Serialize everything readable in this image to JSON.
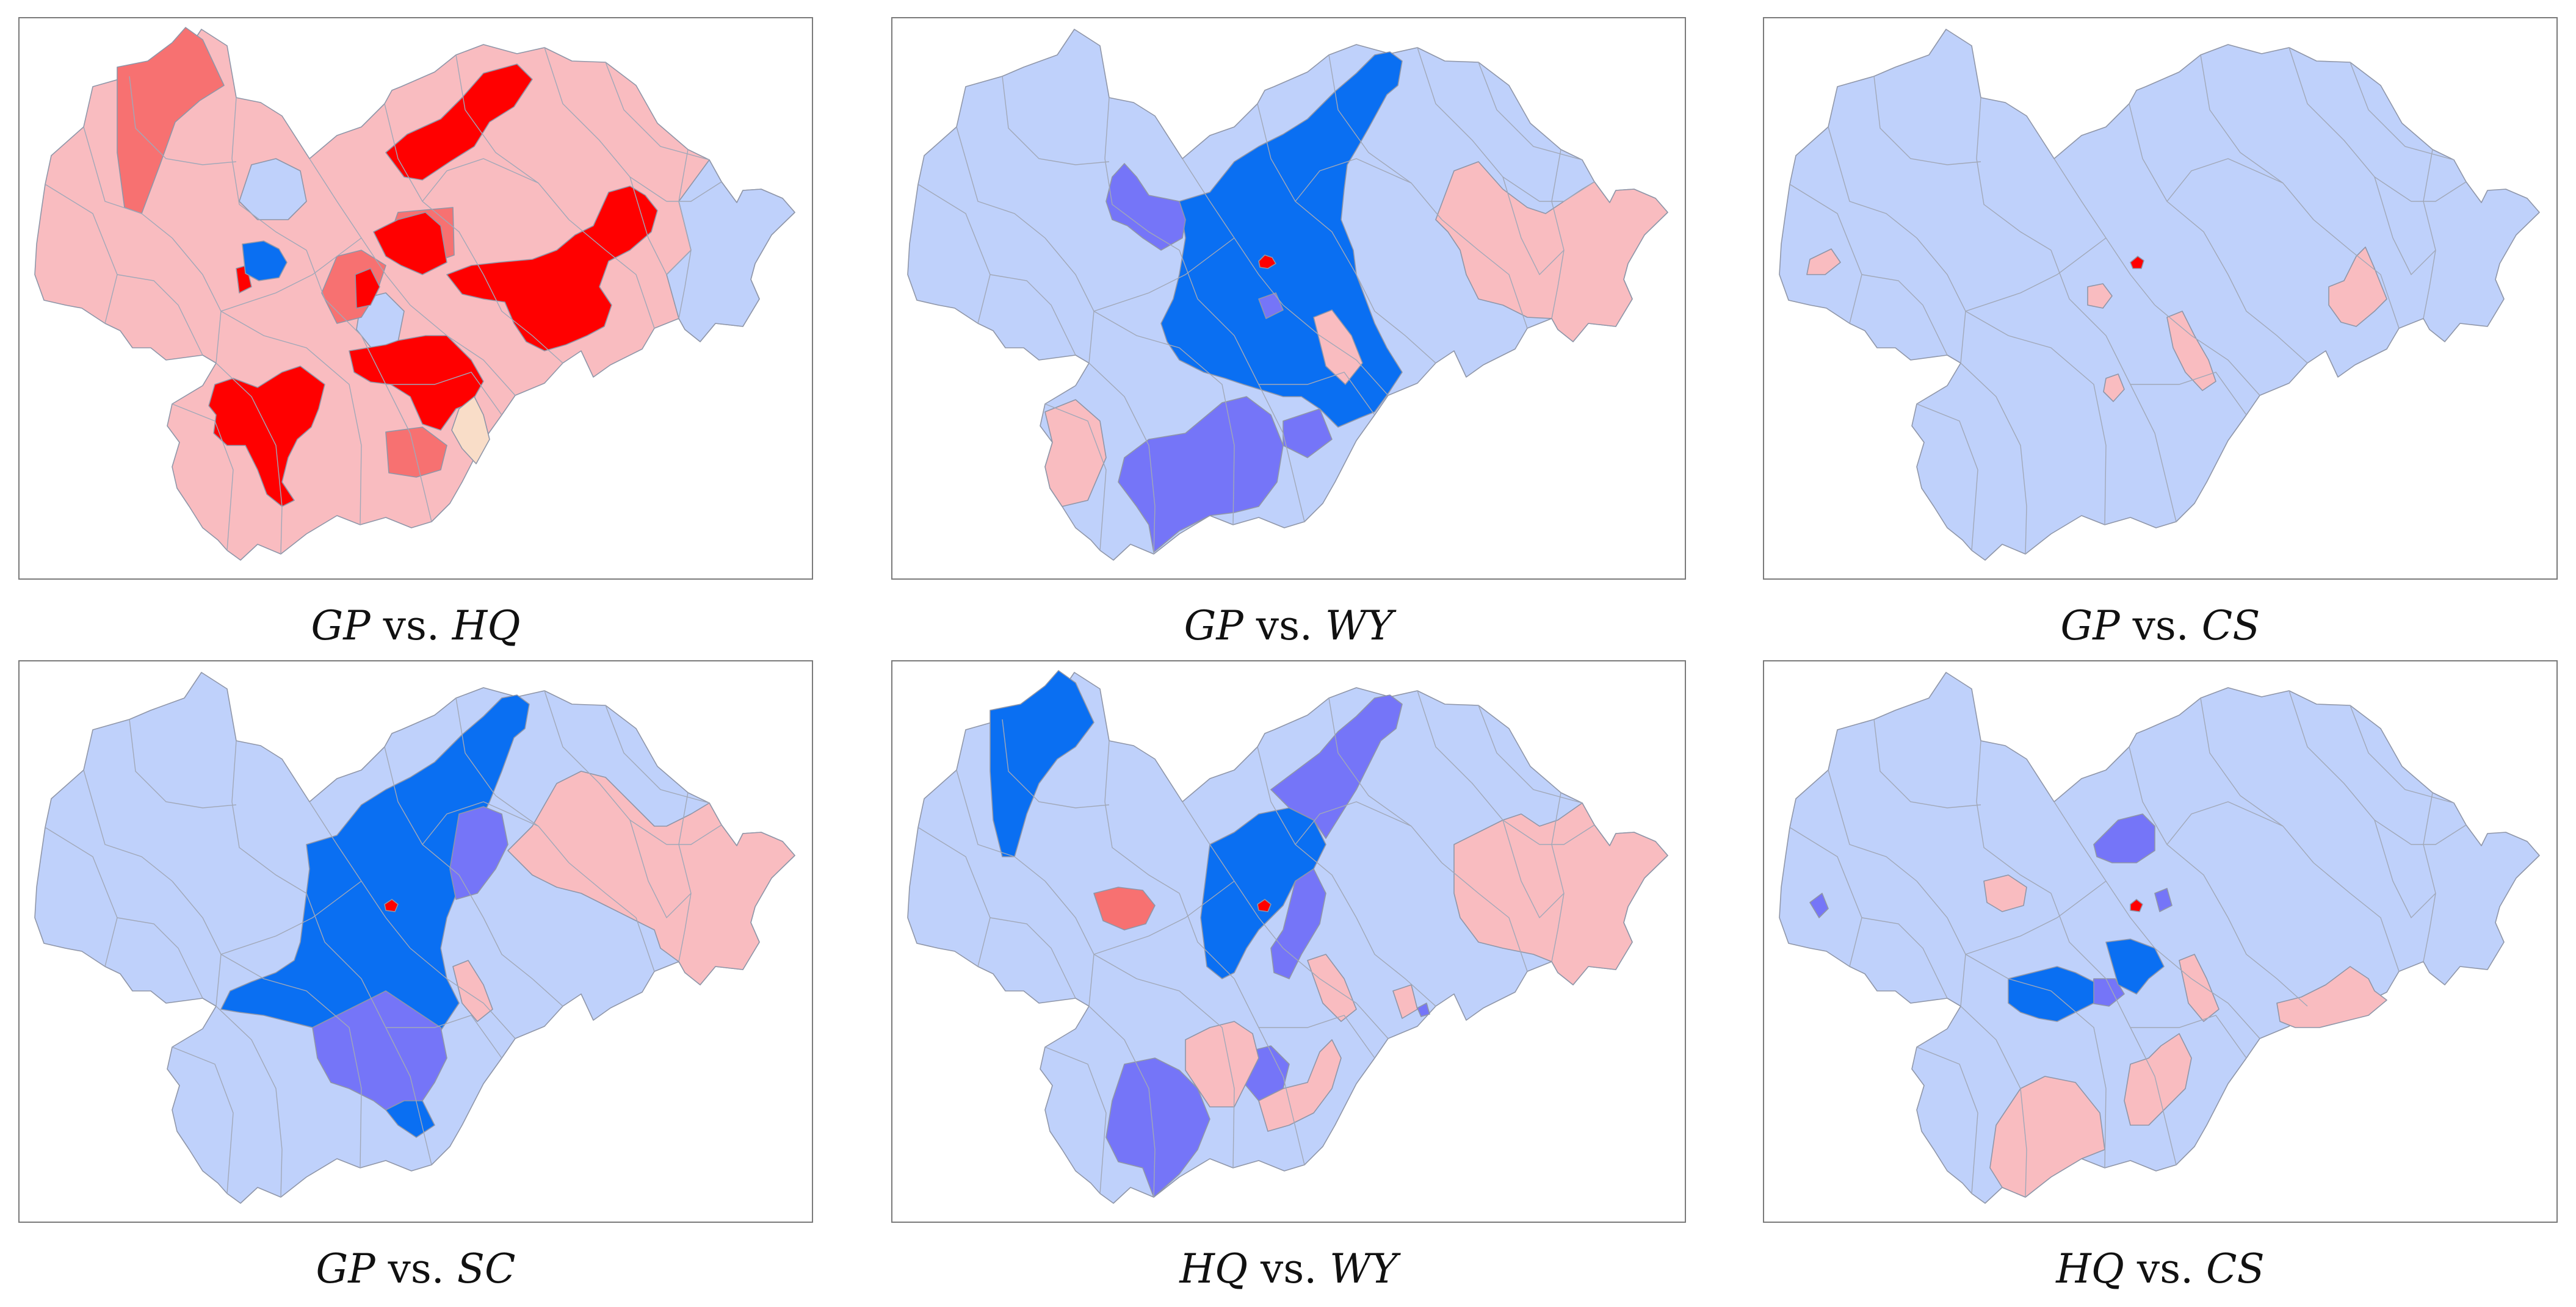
{
  "figure": {
    "colors": {
      "strong_blue": "#0a6ff2",
      "medium_blue": "#7575f8",
      "light_blue": "#bfd1fb",
      "light_red": "#f9bcc0",
      "medium_red": "#f77171",
      "strong_red": "#ff0000",
      "neutral": "#f9ddc8",
      "boundary": "#9aa1b3"
    },
    "panels": [
      {
        "caption": {
          "a": "GP",
          "vs": "vs.",
          "b": "HQ"
        },
        "base": "light_red",
        "highlights": [
          "strong_red",
          "medium_red",
          "strong_blue",
          "light_blue",
          "neutral"
        ]
      },
      {
        "caption": {
          "a": "GP",
          "vs": "vs.",
          "b": "WY"
        },
        "base": "light_blue",
        "highlights": [
          "strong_blue",
          "medium_blue",
          "light_red",
          "strong_red"
        ]
      },
      {
        "caption": {
          "a": "GP",
          "vs": "vs.",
          "b": "CS"
        },
        "base": "light_blue",
        "highlights": [
          "light_red",
          "strong_red"
        ]
      },
      {
        "caption": {
          "a": "GP",
          "vs": "vs.",
          "b": "SC"
        },
        "base": "light_blue",
        "highlights": [
          "strong_blue",
          "medium_blue",
          "light_red",
          "strong_red"
        ]
      },
      {
        "caption": {
          "a": "HQ",
          "vs": "vs.",
          "b": "WY"
        },
        "base": "light_blue",
        "highlights": [
          "strong_blue",
          "medium_blue",
          "light_red",
          "medium_red",
          "strong_red"
        ]
      },
      {
        "caption": {
          "a": "HQ",
          "vs": "vs.",
          "b": "CS"
        },
        "base": "light_blue",
        "highlights": [
          "strong_blue",
          "medium_blue",
          "light_red",
          "strong_red"
        ]
      }
    ]
  }
}
